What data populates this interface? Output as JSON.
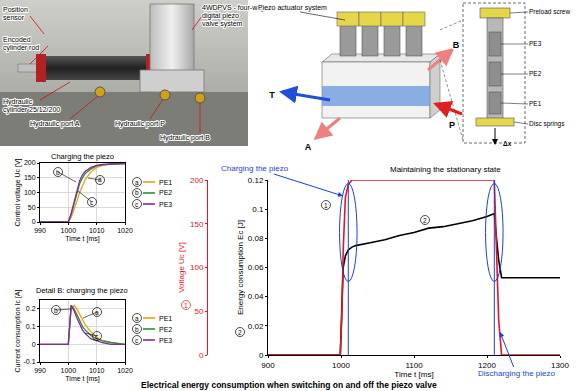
{
  "photo": {
    "labels": [
      {
        "text": [
          "Position",
          "sensor"
        ]
      },
      {
        "text": [
          "Encoded",
          "cylinder rod"
        ]
      },
      {
        "text": [
          "Hydraulic",
          "cylinder 25/12/200"
        ]
      },
      {
        "text": [
          "Hydraulic port A"
        ]
      },
      {
        "text": [
          "Hydraulic port P"
        ]
      },
      {
        "text": [
          "Hydraulic port B"
        ]
      },
      {
        "text": [
          "4WDPVS - four-way",
          "digital piezo",
          "valve system"
        ]
      }
    ]
  },
  "diagram": {
    "labels": {
      "actuator": "Piezo actuator system",
      "ports": [
        "T",
        "B",
        "P",
        "A"
      ],
      "detail": [
        "Preload screw",
        "PE3",
        "PE2",
        "PE1",
        "Disc springs",
        "Δx"
      ]
    }
  },
  "chart_data": [
    {
      "type": "line",
      "title": "Charging the piezo",
      "xlabel": "Time t [ms]",
      "ylabel": "Control voltage Uc [V]",
      "x": [
        990,
        998,
        1000,
        1001,
        1002,
        1003,
        1004,
        1005,
        1006,
        1008,
        1010,
        1012,
        1015,
        1020
      ],
      "series": [
        {
          "name": "PE1",
          "tag": "a",
          "color": "#f39c12",
          "values": [
            0,
            0,
            0,
            15,
            40,
            70,
            100,
            125,
            145,
            170,
            185,
            192,
            196,
            198
          ]
        },
        {
          "name": "PE2",
          "tag": "b",
          "color": "#2e8b3a",
          "values": [
            0,
            0,
            0,
            25,
            60,
            100,
            130,
            150,
            165,
            180,
            190,
            194,
            197,
            198
          ]
        },
        {
          "name": "PE3",
          "tag": "c",
          "color": "#7b2fa0",
          "values": [
            0,
            0,
            0,
            30,
            70,
            110,
            140,
            160,
            172,
            185,
            192,
            195,
            197,
            198
          ]
        }
      ],
      "xlim": [
        990,
        1020
      ],
      "xticks": [
        990,
        1000,
        1010,
        1020
      ],
      "ylim": [
        0,
        200
      ],
      "yticks": [
        0,
        50,
        100,
        150,
        200
      ],
      "grid": true,
      "legend": "right"
    },
    {
      "type": "line",
      "title": "Detail B: charging the piezo",
      "xlabel": "Time t [ms]",
      "ylabel": "Current consumption Ic [A]",
      "x": [
        990,
        998,
        1000,
        1001,
        1002,
        1003,
        1004,
        1005,
        1006,
        1008,
        1010,
        1012,
        1015,
        1020
      ],
      "series": [
        {
          "name": "PE1",
          "tag": "a",
          "color": "#f39c12",
          "values": [
            0,
            0,
            0,
            0.2,
            0.22,
            0.2,
            0.17,
            0.14,
            0.11,
            0.07,
            0.04,
            0.02,
            0.01,
            0
          ]
        },
        {
          "name": "PE2",
          "tag": "b",
          "color": "#2e8b3a",
          "values": [
            0,
            0,
            0,
            0.22,
            0.2,
            0.17,
            0.13,
            0.1,
            0.08,
            0.05,
            0.03,
            0.02,
            0.01,
            0
          ]
        },
        {
          "name": "PE3",
          "tag": "c",
          "color": "#7b2fa0",
          "values": [
            0,
            0,
            0,
            0.22,
            0.19,
            0.15,
            0.11,
            0.08,
            0.06,
            0.03,
            0.02,
            0.01,
            0,
            0
          ]
        }
      ],
      "xlim": [
        990,
        1020
      ],
      "xticks": [
        990,
        1000,
        1010,
        1020
      ],
      "ylim": [
        -0.1,
        0.25
      ],
      "yticks": [
        -0.1,
        0,
        0.1,
        0.2
      ],
      "grid": true,
      "legend": "right"
    },
    {
      "type": "line",
      "xlabel": "Time t [ms]",
      "ylabel": "Energy consumption Ec [J]",
      "y2label": "Voltage Uc [V]",
      "x": [
        900,
        995,
        999,
        1001,
        1003,
        1006,
        1010,
        1015,
        1020,
        1040,
        1060,
        1080,
        1100,
        1120,
        1140,
        1160,
        1180,
        1200,
        1205,
        1210,
        1213,
        1216,
        1220,
        1300
      ],
      "series": [
        {
          "tag": "1",
          "axis": "y2",
          "color": "#e8141e",
          "values": [
            0,
            0,
            0,
            40,
            120,
            180,
            195,
            200,
            200,
            200,
            200,
            200,
            200,
            200,
            200,
            200,
            200,
            200,
            200,
            200,
            120,
            40,
            0,
            0
          ]
        },
        {
          "tag": "2",
          "color": "#000000",
          "values": [
            0,
            0,
            0,
            0.03,
            0.06,
            0.068,
            0.072,
            0.074,
            0.075,
            0.077,
            0.079,
            0.082,
            0.084,
            0.087,
            0.088,
            0.09,
            0.092,
            0.095,
            0.096,
            0.097,
            0.08,
            0.065,
            0.053,
            0.053
          ]
        }
      ],
      "xlim": [
        900,
        1300
      ],
      "xticks": [
        900,
        1000,
        1100,
        1200,
        1300
      ],
      "ylim": [
        0,
        0.12
      ],
      "yticks": [
        0,
        0.02,
        0.04,
        0.06,
        0.08,
        0.1,
        0.12
      ],
      "y2lim": [
        0,
        200
      ],
      "y2ticks": [
        0,
        50,
        100,
        150,
        200
      ],
      "x_markers": [
        1010,
        1210
      ],
      "annotations": [
        {
          "text": "Charging the piezo",
          "color": "#1a3fe0"
        },
        {
          "text": "Maintaining the stationary state",
          "color": "#000000"
        },
        {
          "text": "Discharging the piezo",
          "color": "#1a3fe0"
        }
      ],
      "grid": false
    }
  ],
  "caption": "Electrical energy consumption when switching on and off the piezo valve"
}
